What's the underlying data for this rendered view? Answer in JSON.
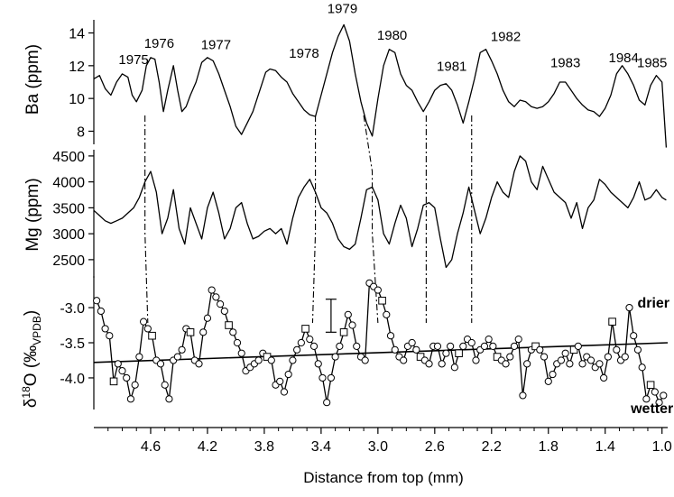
{
  "chart_data": {
    "type": "line",
    "xlabel": "Distance from top (mm)",
    "xlim": [
      5.0,
      0.96
    ],
    "x_ticks": [
      "4.6",
      "4.2",
      "3.8",
      "3.4",
      "3.0",
      "2.6",
      "2.2",
      "1.8",
      "1.4",
      "1.0"
    ],
    "panels": [
      {
        "name": "Ba",
        "ylabel": "Ba (ppm)",
        "ylim": [
          7.2,
          14.8
        ],
        "y_ticks": [
          "8",
          "10",
          "12",
          "14"
        ],
        "series": [
          {
            "x": [
              5.0,
              4.96,
              4.92,
              4.88,
              4.84,
              4.8,
              4.76,
              4.73,
              4.7,
              4.66,
              4.63,
              4.6,
              4.57,
              4.54,
              4.51,
              4.48,
              4.44,
              4.41,
              4.38,
              4.35,
              4.32,
              4.28,
              4.24,
              4.2,
              4.16,
              4.12,
              4.08,
              4.04,
              4.0,
              3.96,
              3.92,
              3.88,
              3.85,
              3.82,
              3.79,
              3.76,
              3.72,
              3.68,
              3.64,
              3.6,
              3.56,
              3.52,
              3.48,
              3.44,
              3.4,
              3.36,
              3.32,
              3.28,
              3.24,
              3.2,
              3.16,
              3.12,
              3.08,
              3.04,
              3.0,
              2.96,
              2.92,
              2.88,
              2.84,
              2.8,
              2.76,
              2.72,
              2.68,
              2.64,
              2.6,
              2.56,
              2.52,
              2.48,
              2.44,
              2.4,
              2.36,
              2.32,
              2.28,
              2.24,
              2.2,
              2.16,
              2.12,
              2.08,
              2.04,
              2.0,
              1.96,
              1.92,
              1.88,
              1.84,
              1.8,
              1.76,
              1.72,
              1.68,
              1.64,
              1.6,
              1.56,
              1.52,
              1.48,
              1.44,
              1.4,
              1.36,
              1.32,
              1.28,
              1.24,
              1.2,
              1.16,
              1.12,
              1.08,
              1.04,
              1.0,
              0.97
            ],
            "y": [
              11.2,
              11.4,
              10.6,
              10.2,
              11.0,
              11.5,
              11.3,
              10.2,
              9.8,
              10.5,
              12.0,
              12.5,
              12.4,
              11.0,
              9.2,
              10.5,
              12.0,
              10.5,
              9.2,
              9.5,
              10.2,
              11.0,
              12.2,
              12.5,
              12.3,
              11.5,
              10.5,
              9.5,
              8.3,
              7.8,
              8.5,
              9.2,
              10.0,
              10.8,
              11.6,
              11.8,
              11.7,
              11.3,
              11.0,
              10.3,
              9.8,
              9.3,
              9.0,
              8.9,
              10.2,
              11.5,
              12.8,
              13.8,
              14.5,
              13.5,
              11.5,
              9.8,
              8.5,
              7.7,
              10.0,
              12.0,
              13.0,
              12.8,
              11.5,
              10.8,
              10.5,
              9.8,
              9.2,
              9.8,
              10.5,
              10.8,
              10.9,
              10.5,
              9.6,
              8.5,
              9.8,
              11.2,
              12.8,
              13.0,
              12.3,
              11.5,
              10.5,
              9.8,
              9.5,
              9.9,
              9.8,
              9.5,
              9.4,
              9.5,
              9.8,
              10.3,
              11.0,
              11.0,
              10.5,
              10.0,
              9.6,
              9.3,
              9.2,
              8.9,
              9.4,
              10.2,
              11.5,
              12.0,
              11.5,
              10.8,
              9.9,
              9.6,
              10.8,
              11.4,
              11.0,
              7.0
            ]
          }
        ],
        "annotations": [
          {
            "text": "1975",
            "x": 4.72,
            "y": 12.1
          },
          {
            "text": "1976",
            "x": 4.54,
            "y": 13.1
          },
          {
            "text": "1977",
            "x": 4.14,
            "y": 13.0
          },
          {
            "text": "1978",
            "x": 3.52,
            "y": 12.5
          },
          {
            "text": "1979",
            "x": 3.25,
            "y": 15.2
          },
          {
            "text": "1980",
            "x": 2.9,
            "y": 13.6
          },
          {
            "text": "1981",
            "x": 2.48,
            "y": 11.7
          },
          {
            "text": "1982",
            "x": 2.1,
            "y": 13.5
          },
          {
            "text": "1983",
            "x": 1.68,
            "y": 11.9
          },
          {
            "text": "1984",
            "x": 1.27,
            "y": 12.2
          },
          {
            "text": "1985",
            "x": 1.07,
            "y": 11.9
          }
        ]
      },
      {
        "name": "Mg",
        "ylabel": "Mg (ppm)",
        "ylim": [
          2150,
          4620
        ],
        "y_ticks": [
          "4500",
          "4000",
          "3500",
          "3000",
          "2500"
        ],
        "series": [
          {
            "x": [
              5.0,
              4.96,
              4.92,
              4.88,
              4.84,
              4.8,
              4.76,
              4.72,
              4.68,
              4.64,
              4.6,
              4.56,
              4.52,
              4.48,
              4.44,
              4.4,
              4.36,
              4.32,
              4.28,
              4.24,
              4.2,
              4.16,
              4.12,
              4.08,
              4.04,
              4.0,
              3.96,
              3.92,
              3.88,
              3.84,
              3.8,
              3.76,
              3.72,
              3.68,
              3.64,
              3.6,
              3.56,
              3.52,
              3.48,
              3.44,
              3.4,
              3.36,
              3.32,
              3.28,
              3.24,
              3.2,
              3.16,
              3.12,
              3.08,
              3.04,
              3.0,
              2.96,
              2.92,
              2.88,
              2.84,
              2.8,
              2.76,
              2.72,
              2.68,
              2.64,
              2.6,
              2.56,
              2.52,
              2.48,
              2.44,
              2.4,
              2.36,
              2.32,
              2.28,
              2.24,
              2.2,
              2.16,
              2.12,
              2.08,
              2.04,
              2.0,
              1.96,
              1.92,
              1.88,
              1.84,
              1.8,
              1.76,
              1.72,
              1.68,
              1.64,
              1.6,
              1.56,
              1.52,
              1.48,
              1.44,
              1.4,
              1.36,
              1.32,
              1.28,
              1.24,
              1.2,
              1.16,
              1.12,
              1.08,
              1.04,
              1.0,
              0.97
            ],
            "y": [
              3450,
              3350,
              3250,
              3200,
              3250,
              3300,
              3400,
              3500,
              3700,
              4000,
              4200,
              3800,
              3000,
              3300,
              3850,
              3100,
              2800,
              3500,
              3200,
              2900,
              3500,
              3800,
              3400,
              2900,
              3100,
              3500,
              3600,
              3200,
              2900,
              2950,
              3050,
              3100,
              3000,
              3100,
              2800,
              3300,
              3700,
              3900,
              4050,
              3800,
              3500,
              3400,
              3200,
              2900,
              2750,
              2700,
              2800,
              3300,
              3850,
              3900,
              3650,
              3000,
              2800,
              3200,
              3550,
              3300,
              2750,
              3100,
              3550,
              3600,
              3500,
              2900,
              2350,
              2500,
              3000,
              3400,
              3900,
              3450,
              3000,
              3300,
              3700,
              4000,
              3800,
              3700,
              4200,
              4500,
              4400,
              4000,
              3850,
              4300,
              4050,
              3800,
              3700,
              3600,
              3300,
              3600,
              3100,
              3500,
              3650,
              4050,
              3950,
              3800,
              3700,
              3600,
              3500,
              3700,
              4000,
              3650,
              3700,
              3850,
              3700,
              3650
            ]
          }
        ]
      },
      {
        "name": "d18O",
        "ylabel_main": "δ",
        "ylabel_sup": "18",
        "ylabel_mid": "O (‰",
        "ylabel_sub": "VPDB",
        "ylabel_end": ")",
        "ylim": [
          -4.45,
          -2.55
        ],
        "y_ticks": [
          "-3.0",
          "-3.5",
          "-4.0"
        ],
        "series": [
          {
            "x": [
              4.98,
              4.95,
              4.92,
              4.89,
              4.86,
              4.83,
              4.8,
              4.77,
              4.74,
              4.71,
              4.68,
              4.65,
              4.62,
              4.59,
              4.56,
              4.53,
              4.5,
              4.47,
              4.44,
              4.41,
              4.38,
              4.35,
              4.32,
              4.29,
              4.26,
              4.23,
              4.2,
              4.17,
              4.14,
              4.11,
              4.08,
              4.05,
              4.02,
              3.99,
              3.96,
              3.93,
              3.9,
              3.87,
              3.84,
              3.81,
              3.78,
              3.75,
              3.72,
              3.69,
              3.66,
              3.63,
              3.6,
              3.57,
              3.54,
              3.51,
              3.48,
              3.45,
              3.42,
              3.39,
              3.36,
              3.33,
              3.3,
              3.27,
              3.24,
              3.21,
              3.18,
              3.15,
              3.12,
              3.09,
              3.06,
              3.03,
              3.0,
              2.97,
              2.94,
              2.91,
              2.88,
              2.85,
              2.82,
              2.79,
              2.76,
              2.73,
              2.7,
              2.67,
              2.64,
              2.61,
              2.58,
              2.55,
              2.52,
              2.49,
              2.46,
              2.43,
              2.4,
              2.37,
              2.34,
              2.31,
              2.28,
              2.25,
              2.22,
              2.19,
              2.16,
              2.13,
              2.1,
              2.07,
              2.04,
              2.01,
              1.98,
              1.95,
              1.92,
              1.89,
              1.86,
              1.83,
              1.8,
              1.77,
              1.74,
              1.71,
              1.68,
              1.65,
              1.62,
              1.59,
              1.56,
              1.53,
              1.5,
              1.47,
              1.44,
              1.41,
              1.38,
              1.35,
              1.32,
              1.29,
              1.26,
              1.23,
              1.2,
              1.17,
              1.14,
              1.11,
              1.08,
              1.05,
              1.02,
              0.99
            ],
            "y": [
              -2.9,
              -3.05,
              -3.3,
              -3.4,
              -4.05,
              -3.8,
              -3.9,
              -4.0,
              -4.3,
              -4.1,
              -3.7,
              -3.2,
              -3.3,
              -3.4,
              -3.75,
              -3.8,
              -4.1,
              -4.3,
              -3.75,
              -3.7,
              -3.6,
              -3.3,
              -3.35,
              -3.75,
              -3.8,
              -3.35,
              -3.15,
              -2.75,
              -2.85,
              -2.95,
              -3.05,
              -3.25,
              -3.35,
              -3.5,
              -3.65,
              -3.9,
              -3.85,
              -3.8,
              -3.75,
              -3.65,
              -3.7,
              -3.75,
              -4.1,
              -4.05,
              -4.2,
              -3.95,
              -3.75,
              -3.6,
              -3.5,
              -3.3,
              -3.45,
              -3.55,
              -3.8,
              -4.0,
              -4.35,
              -4.0,
              -3.7,
              -3.55,
              -3.35,
              -3.1,
              -3.25,
              -3.55,
              -3.7,
              -3.75,
              -2.65,
              -2.7,
              -2.75,
              -2.9,
              -3.1,
              -3.4,
              -3.6,
              -3.7,
              -3.75,
              -3.55,
              -3.5,
              -3.6,
              -3.7,
              -3.75,
              -3.8,
              -3.55,
              -3.55,
              -3.8,
              -3.65,
              -3.55,
              -3.85,
              -3.65,
              -3.55,
              -3.45,
              -3.5,
              -3.75,
              -3.6,
              -3.55,
              -3.45,
              -3.55,
              -3.7,
              -3.75,
              -3.8,
              -3.7,
              -3.55,
              -3.45,
              -4.25,
              -3.8,
              -3.6,
              -3.55,
              -3.6,
              -3.7,
              -4.05,
              -3.95,
              -3.8,
              -3.75,
              -3.65,
              -3.8,
              -3.6,
              -3.55,
              -3.8,
              -3.7,
              -3.75,
              -3.85,
              -3.8,
              -4.0,
              -3.7,
              -3.2,
              -3.6,
              -3.75,
              -3.7,
              -3.0,
              -3.4,
              -3.6,
              -3.85,
              -4.3,
              -4.1,
              -4.2,
              -4.35,
              -4.25
            ]
          }
        ],
        "trend_line": {
          "x": [
            5.0,
            0.96
          ],
          "y": [
            -3.78,
            -3.5
          ]
        },
        "error_bar": {
          "x": 3.33,
          "y_low": -3.35,
          "y_high": -2.88
        },
        "labels": [
          {
            "text": "drier",
            "x": 1.06,
            "y": -3.0
          },
          {
            "text": "wetter",
            "x": 1.07,
            "y": -4.5
          }
        ]
      }
    ],
    "correlation_lines": [
      {
        "x_top": 4.64,
        "x_mid": 4.64,
        "x_bot": 4.62
      },
      {
        "x_top": 3.44,
        "x_mid": 3.44,
        "x_bot": 3.46
      },
      {
        "x_top": 3.1,
        "x_mid": 3.04,
        "x_bot": 3.0
      },
      {
        "x_top": 2.66,
        "x_mid": 2.66,
        "x_bot": 2.66
      },
      {
        "x_top": 2.34,
        "x_mid": 2.34,
        "x_bot": 2.34
      }
    ]
  }
}
